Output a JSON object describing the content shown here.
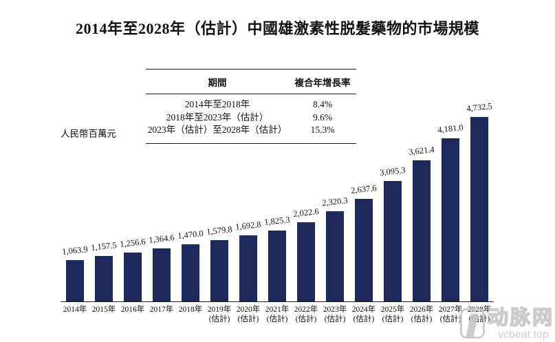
{
  "page": {
    "title": "2014年至2028年（估計）中國雄激素性脱髮藥物的市場規模"
  },
  "cagr_table": {
    "col_headers": [
      "期間",
      "複合年增長率"
    ],
    "rows": [
      {
        "period": "2014年至2018年",
        "cagr": "8.4%"
      },
      {
        "period": "2018年至2023年（估計）",
        "cagr": "9.6%"
      },
      {
        "period": "2023年（估計）至2028年（估計）",
        "cagr": "15.3%"
      }
    ]
  },
  "chart_data": {
    "type": "bar",
    "title": "2014年至2028年（估計）中國雄激素性脱髮藥物的市場規模",
    "ylabel": "人民幣百萬元",
    "categories": [
      "2014年",
      "2015年",
      "2016年",
      "2017年",
      "2018年",
      "2019年(估計)",
      "2020年(估計)",
      "2021年(估計)",
      "2022年(估計)",
      "2023年(估計)",
      "2024年(估計)",
      "2025年(估計)",
      "2026年(估計)",
      "2027年(估計)",
      "2028年(估計)"
    ],
    "values": [
      1063.9,
      1157.5,
      1256.6,
      1364.6,
      1470.0,
      1579.8,
      1692.8,
      1825.3,
      2022.6,
      2320.3,
      2637.6,
      3095.3,
      3621.4,
      4181.0,
      4732.5
    ],
    "value_labels": [
      "1,063.9",
      "1,157.5",
      "1,256.6",
      "1,364.6",
      "1,470.0",
      "1,579.8",
      "1,692.8",
      "1,825.3",
      "2,022.6",
      "2,320.3",
      "2,637.6",
      "3,095.3",
      "3,621.4",
      "4,181.0",
      "4,732.5"
    ],
    "ylim": [
      0,
      4800
    ],
    "grid": false,
    "legend": "none",
    "bar_color": "#1e295c"
  },
  "watermark": {
    "logo_text": "动脉网",
    "site": "vcbeat.top"
  }
}
